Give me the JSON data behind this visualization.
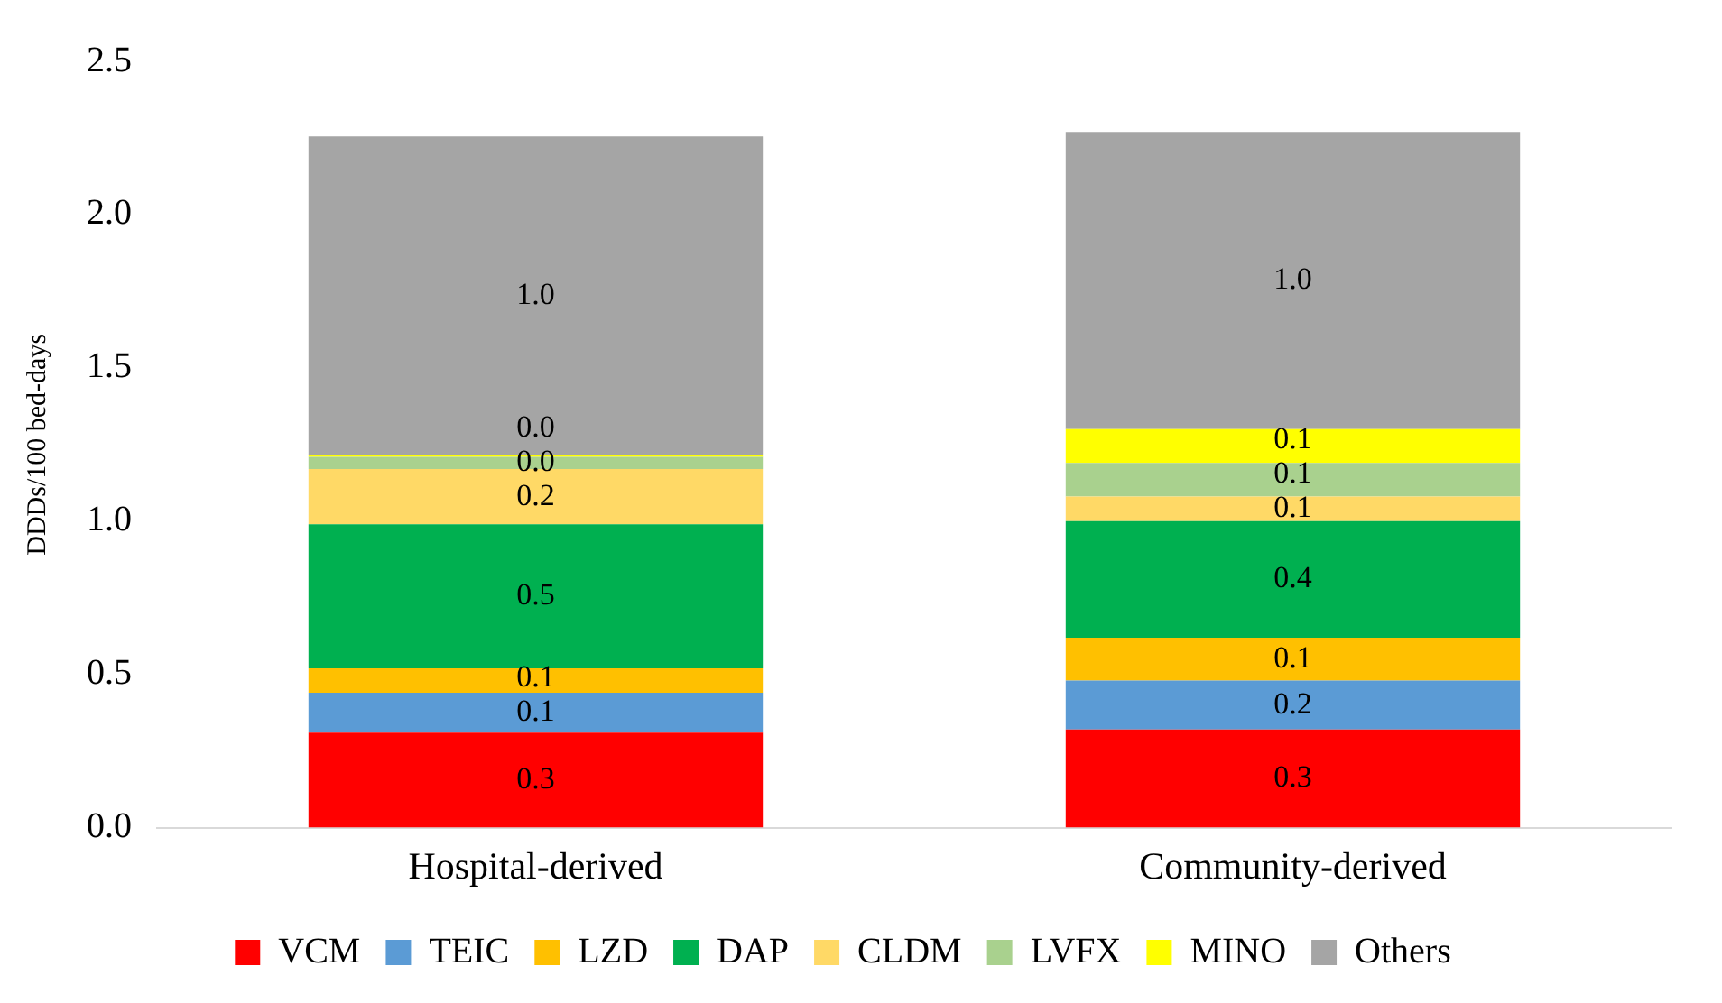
{
  "chart_data": {
    "type": "bar",
    "stacked": true,
    "ylabel": "DDDs/100 bed-days",
    "categories": [
      "Hospital-derived",
      "Community-derived"
    ],
    "ylim": [
      0,
      2.5
    ],
    "yticks": [
      {
        "value": 0,
        "label": "0.0"
      },
      {
        "value": 0.5,
        "label": "0.5"
      },
      {
        "value": 1,
        "label": "1.0"
      },
      {
        "value": 1.5,
        "label": "1.5"
      },
      {
        "value": 2,
        "label": "2.0"
      },
      {
        "value": 2.5,
        "label": "2.5"
      }
    ],
    "grid": false,
    "legend": "bottom",
    "series": [
      {
        "name": "VCM",
        "color": "#ff0000",
        "values": [
          0.31,
          0.32
        ],
        "value_labels": [
          "0.3",
          "0.3"
        ]
      },
      {
        "name": "TEIC",
        "color": "#5b9bd5",
        "values": [
          0.13,
          0.16
        ],
        "value_labels": [
          "0.1",
          "0.2"
        ]
      },
      {
        "name": "LZD",
        "color": "#ffc000",
        "values": [
          0.08,
          0.14
        ],
        "value_labels": [
          "0.1",
          "0.1"
        ]
      },
      {
        "name": "DAP",
        "color": "#00b050",
        "values": [
          0.47,
          0.38
        ],
        "value_labels": [
          "0.5",
          "0.4"
        ]
      },
      {
        "name": "CLDM",
        "color": "#ffd966",
        "values": [
          0.18,
          0.08
        ],
        "value_labels": [
          "0.2",
          "0.1"
        ]
      },
      {
        "name": "LVFX",
        "color": "#a9d18e",
        "values": [
          0.04,
          0.11
        ],
        "value_labels": [
          "0.0",
          "0.1"
        ]
      },
      {
        "name": "MINO",
        "color": "#ffff00",
        "values": [
          0.005,
          0.11
        ],
        "value_labels": [
          "0.0",
          "0.1"
        ]
      },
      {
        "name": "Others",
        "color": "#a5a5a5",
        "values": [
          1.04,
          0.97
        ],
        "value_labels": [
          "1.0",
          "1.0"
        ]
      }
    ]
  }
}
